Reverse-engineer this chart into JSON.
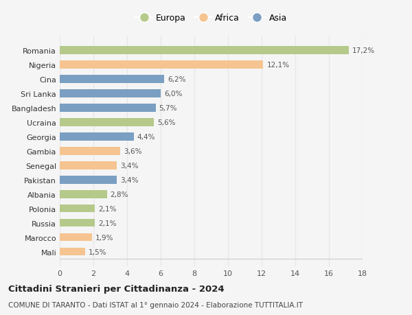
{
  "categories": [
    "Romania",
    "Nigeria",
    "Cina",
    "Sri Lanka",
    "Bangladesh",
    "Ucraina",
    "Georgia",
    "Gambia",
    "Senegal",
    "Pakistan",
    "Albania",
    "Polonia",
    "Russia",
    "Marocco",
    "Mali"
  ],
  "values": [
    17.2,
    12.1,
    6.2,
    6.0,
    5.7,
    5.6,
    4.4,
    3.6,
    3.4,
    3.4,
    2.8,
    2.1,
    2.1,
    1.9,
    1.5
  ],
  "labels": [
    "17,2%",
    "12,1%",
    "6,2%",
    "6,0%",
    "5,7%",
    "5,6%",
    "4,4%",
    "3,6%",
    "3,4%",
    "3,4%",
    "2,8%",
    "2,1%",
    "2,1%",
    "1,9%",
    "1,5%"
  ],
  "continents": [
    "Europa",
    "Africa",
    "Asia",
    "Asia",
    "Asia",
    "Europa",
    "Asia",
    "Africa",
    "Africa",
    "Asia",
    "Europa",
    "Europa",
    "Europa",
    "Africa",
    "Africa"
  ],
  "colors": {
    "Europa": "#b5c98a",
    "Africa": "#f5c491",
    "Asia": "#7a9fc2"
  },
  "legend_order": [
    "Europa",
    "Africa",
    "Asia"
  ],
  "xlim": [
    0,
    18
  ],
  "xticks": [
    0,
    2,
    4,
    6,
    8,
    10,
    12,
    14,
    16,
    18
  ],
  "title": "Cittadini Stranieri per Cittadinanza - 2024",
  "subtitle": "COMUNE DI TARANTO - Dati ISTAT al 1° gennaio 2024 - Elaborazione TUTTITALIA.IT",
  "background_color": "#f5f5f5",
  "grid_color": "#e8e8e8",
  "bar_height": 0.55
}
